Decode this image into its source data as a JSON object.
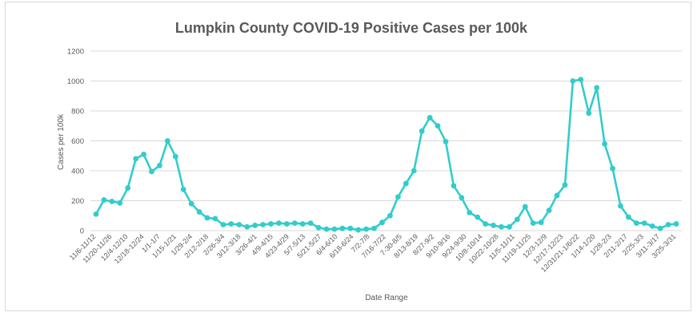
{
  "chart_data": {
    "type": "line",
    "title": "Lumpkin County COVID-19 Positive Cases per 100k",
    "xlabel": "Date Range",
    "ylabel": "Cases per 100k",
    "ylim": [
      0,
      1200
    ],
    "yticks": [
      0,
      200,
      400,
      600,
      800,
      1000,
      1200
    ],
    "grid": "horizontal",
    "legend": "none",
    "series_color": "#33cccc",
    "tick_labels": [
      "11/6-11/12",
      "11/20-11/26",
      "12/4-12/10",
      "12/18-12/24",
      "1/1-1/7",
      "1/15-1/21",
      "1/29-2/4",
      "2/12-2/18",
      "2/26-3/4",
      "3/12-3/18",
      "3/26-4/1",
      "4/9-4/15",
      "4/23-4/29",
      "5/7-5/13",
      "5/21-5/27",
      "6/4-6/10",
      "6/18-6/24",
      "7/2-7/8",
      "7/16-7/22",
      "7-30-8/5",
      "8/13-8/19",
      "8/27-9/2",
      "9/10-9/16",
      "9/24-9/30",
      "10/8-10/14",
      "10/22-10/28",
      "11/5-11/11",
      "11/19-11/25",
      "12/3-12/9",
      "12/17-12/23",
      "12/31/21-1/6/22",
      "1/14-1/20",
      "1/28-2/3",
      "2/11-2/17",
      "2/25-3/3",
      "3/11-3/17",
      "3/25-3/31"
    ],
    "values": [
      110,
      205,
      195,
      185,
      285,
      480,
      510,
      395,
      435,
      600,
      495,
      275,
      180,
      125,
      85,
      80,
      40,
      45,
      40,
      25,
      35,
      40,
      45,
      50,
      45,
      50,
      45,
      50,
      20,
      10,
      10,
      15,
      15,
      5,
      10,
      15,
      55,
      100,
      225,
      315,
      400,
      665,
      755,
      700,
      595,
      300,
      220,
      120,
      90,
      45,
      35,
      25,
      25,
      75,
      160,
      50,
      55,
      135,
      235,
      305,
      1000,
      1010,
      785,
      955,
      580,
      415,
      165,
      90,
      50,
      50,
      30,
      15,
      40,
      45
    ]
  }
}
